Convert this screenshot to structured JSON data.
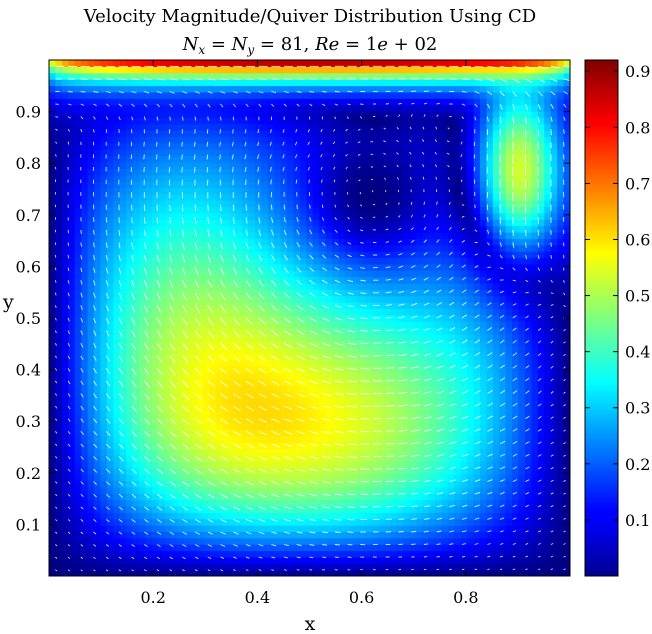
{
  "chart_data": {
    "type": "heatmap",
    "title": "Velocity Magnitude/Quiver Distribution Using CD",
    "subtitle": "N_x = N_y = 81, Re = 1e + 02",
    "xlabel": "x",
    "ylabel": "y",
    "xlim": [
      0,
      1
    ],
    "ylim": [
      0,
      1
    ],
    "x_ticks": [
      "0.2",
      "0.4",
      "0.6",
      "0.8"
    ],
    "y_ticks": [
      "0.1",
      "0.2",
      "0.3",
      "0.4",
      "0.5",
      "0.6",
      "0.7",
      "0.8",
      "0.9"
    ],
    "colorbar": {
      "range": [
        0,
        0.92
      ],
      "ticks": [
        "0.1",
        "0.2",
        "0.3",
        "0.4",
        "0.5",
        "0.6",
        "0.7",
        "0.8",
        "0.9"
      ],
      "colormap": "jet"
    },
    "field": {
      "grid": "81x81",
      "lid_velocity": 1,
      "vortex_center": [
        0.62,
        0.74
      ],
      "max_magnitude": 0.92
    },
    "overlay": "quiver",
    "overlay_color": "#ffffff"
  },
  "subtitle_parts": {
    "nx": "N",
    "nx_sub": "x",
    "eq1": " = ",
    "ny": "N",
    "ny_sub": "y",
    "eq2": " = 81, ",
    "re": "Re",
    "eq3": " = 1",
    "e": "e",
    "rest": " + 02"
  }
}
